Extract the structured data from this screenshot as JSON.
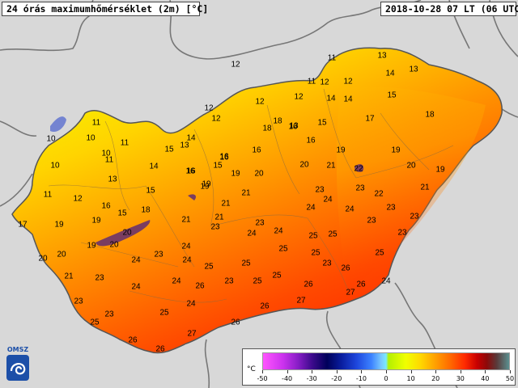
{
  "header": {
    "title": "24 órás maximumhőmérséklet (2m) [°C]",
    "timestamp": "2018-10-28 07 LT (06 UTC)"
  },
  "legend": {
    "unit": "°C",
    "ticks": [
      "-50",
      "-40",
      "-30",
      "-20",
      "-10",
      "0",
      "10",
      "20",
      "30",
      "40",
      "50"
    ]
  },
  "logo": {
    "text": "OMSZ"
  },
  "colors": {
    "background": "#d8d8d8",
    "country_yellow": "#f2f200",
    "country_orange": "#ffa400",
    "country_red": "#ff3c00",
    "borders": "#666666"
  },
  "stations": [
    {
      "v": "11"
    },
    {
      "v": "13"
    },
    {
      "v": "11"
    },
    {
      "v": "13"
    },
    {
      "v": "12"
    },
    {
      "v": "12"
    },
    {
      "v": "14"
    },
    {
      "v": "12"
    },
    {
      "v": "14"
    },
    {
      "v": "15"
    },
    {
      "v": "12"
    },
    {
      "v": "12"
    },
    {
      "v": "12"
    },
    {
      "v": "14"
    },
    {
      "v": "12"
    },
    {
      "v": "18"
    },
    {
      "v": "13"
    },
    {
      "v": "15"
    },
    {
      "v": "17"
    },
    {
      "v": "18"
    },
    {
      "v": "11"
    },
    {
      "v": "16"
    },
    {
      "v": "18"
    },
    {
      "v": "16"
    },
    {
      "v": "10"
    },
    {
      "v": "11"
    },
    {
      "v": "14"
    },
    {
      "v": "13"
    },
    {
      "v": "16"
    },
    {
      "v": "16"
    },
    {
      "v": "16"
    },
    {
      "v": "19"
    },
    {
      "v": "19"
    },
    {
      "v": "10"
    },
    {
      "v": "11"
    },
    {
      "v": "15"
    },
    {
      "v": "10"
    },
    {
      "v": "14"
    },
    {
      "v": "16"
    },
    {
      "v": "16"
    },
    {
      "v": "15"
    },
    {
      "v": "19"
    },
    {
      "v": "20"
    },
    {
      "v": "20"
    },
    {
      "v": "21"
    },
    {
      "v": "22"
    },
    {
      "v": "20"
    },
    {
      "v": "10"
    },
    {
      "v": "13"
    },
    {
      "v": "19"
    },
    {
      "v": "21"
    },
    {
      "v": "23"
    },
    {
      "v": "19"
    },
    {
      "v": "11"
    },
    {
      "v": "12"
    },
    {
      "v": "15"
    },
    {
      "v": "19"
    },
    {
      "v": "21"
    },
    {
      "v": "23"
    },
    {
      "v": "22"
    },
    {
      "v": "24"
    },
    {
      "v": "21"
    },
    {
      "v": "17"
    },
    {
      "v": "16"
    },
    {
      "v": "15"
    },
    {
      "v": "18"
    },
    {
      "v": "21"
    },
    {
      "v": "24"
    },
    {
      "v": "23"
    },
    {
      "v": "23"
    },
    {
      "v": "19"
    },
    {
      "v": "19"
    },
    {
      "v": "21"
    },
    {
      "v": "23"
    },
    {
      "v": "23"
    },
    {
      "v": "24"
    },
    {
      "v": "24"
    },
    {
      "v": "24"
    },
    {
      "v": "20"
    },
    {
      "v": "23"
    },
    {
      "v": "23"
    },
    {
      "v": "25"
    },
    {
      "v": "19"
    },
    {
      "v": "20"
    },
    {
      "v": "24"
    },
    {
      "v": "25"
    },
    {
      "v": "25"
    },
    {
      "v": "23"
    },
    {
      "v": "20"
    },
    {
      "v": "20"
    },
    {
      "v": "24"
    },
    {
      "v": "23"
    },
    {
      "v": "25"
    },
    {
      "v": "25"
    },
    {
      "v": "24"
    },
    {
      "v": "25"
    },
    {
      "v": "21"
    },
    {
      "v": "23"
    },
    {
      "v": "25"
    },
    {
      "v": "26"
    },
    {
      "v": "23"
    },
    {
      "v": "25"
    },
    {
      "v": "25"
    },
    {
      "v": "26"
    },
    {
      "v": "24"
    },
    {
      "v": "24"
    },
    {
      "v": "24"
    },
    {
      "v": "26"
    },
    {
      "v": "23"
    },
    {
      "v": "26"
    },
    {
      "v": "27"
    },
    {
      "v": "27"
    },
    {
      "v": "26"
    },
    {
      "v": "24"
    },
    {
      "v": "23"
    },
    {
      "v": "25"
    },
    {
      "v": "25"
    },
    {
      "v": "27"
    },
    {
      "v": "26"
    },
    {
      "v": "26"
    },
    {
      "v": "26"
    }
  ]
}
